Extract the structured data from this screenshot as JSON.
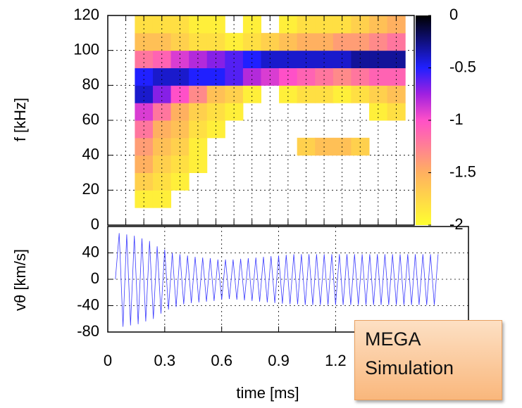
{
  "chart_data": [
    {
      "type": "heatmap",
      "ylabel": "f [kHz]",
      "x": [
        0.2,
        0.3,
        0.4,
        0.5,
        0.6,
        0.7,
        0.8,
        0.9,
        1.0,
        1.1,
        1.2,
        1.3,
        1.4,
        1.5,
        1.6
      ],
      "y": [
        5,
        15,
        25,
        35,
        45,
        55,
        65,
        75,
        85,
        95,
        105,
        115
      ],
      "z": [
        [
          null,
          -1.9,
          -1.7,
          -1.5,
          -1.4,
          -1.2,
          -0.9,
          -0.4,
          -0.5,
          -1.2,
          -1.6,
          -1.8
        ],
        [
          null,
          -1.9,
          -1.8,
          -1.7,
          -1.6,
          -1.5,
          -1.2,
          -0.7,
          -0.4,
          -1.1,
          -1.6,
          -1.8
        ],
        [
          null,
          null,
          -1.9,
          -1.8,
          -1.7,
          -1.6,
          -1.5,
          -1.0,
          -0.4,
          -0.9,
          -1.7,
          -1.8
        ],
        [
          null,
          null,
          null,
          -1.9,
          -1.9,
          -1.8,
          -1.7,
          -1.3,
          -0.5,
          -0.8,
          -1.8,
          -1.9
        ],
        [
          null,
          null,
          null,
          null,
          null,
          -1.9,
          -1.8,
          -1.6,
          -0.5,
          -0.7,
          -1.8,
          -1.9
        ],
        [
          null,
          null,
          null,
          null,
          null,
          null,
          -1.9,
          -1.7,
          -0.6,
          -0.6,
          -1.9,
          null
        ],
        [
          null,
          null,
          null,
          null,
          null,
          null,
          null,
          -1.9,
          -0.8,
          -0.5,
          -1.8,
          -1.9
        ],
        [
          null,
          null,
          null,
          null,
          null,
          null,
          null,
          null,
          -0.9,
          -0.4,
          -1.7,
          null
        ],
        [
          null,
          null,
          null,
          null,
          null,
          null,
          null,
          -1.9,
          -1.0,
          -0.4,
          -1.6,
          -1.9
        ],
        [
          null,
          null,
          null,
          null,
          -1.7,
          null,
          null,
          -1.8,
          -1.1,
          -0.4,
          -1.5,
          -1.8
        ],
        [
          null,
          null,
          null,
          null,
          -1.6,
          null,
          null,
          -1.8,
          -1.2,
          -0.4,
          -1.5,
          -1.8
        ],
        [
          null,
          null,
          null,
          null,
          -1.6,
          null,
          null,
          -1.9,
          -1.3,
          -0.4,
          -1.4,
          -1.8
        ],
        [
          null,
          null,
          null,
          null,
          -1.7,
          null,
          null,
          -1.8,
          -1.2,
          -0.3,
          -1.4,
          -1.7
        ],
        [
          null,
          null,
          null,
          null,
          null,
          null,
          -1.9,
          -1.7,
          -1.1,
          -0.3,
          -1.3,
          -1.6
        ],
        [
          null,
          null,
          null,
          null,
          null,
          null,
          -1.8,
          -1.6,
          -1.1,
          -0.3,
          -1.2,
          -1.5
        ]
      ],
      "xlim": [
        0,
        1.7
      ],
      "xticks": [
        0.1,
        0.2,
        0.3,
        0.4,
        0.5,
        0.6,
        0.7,
        0.8,
        0.9,
        1.0,
        1.1,
        1.2,
        1.3,
        1.4,
        1.5,
        1.6
      ],
      "ylim": [
        0,
        120
      ],
      "yticks": [
        0,
        20,
        40,
        60,
        80,
        100,
        120
      ],
      "zlim": [
        -2,
        0
      ],
      "zticks": [
        0,
        -0.5,
        -1,
        -1.5,
        -2
      ],
      "colorscale": [
        [
          -2,
          "#ffff30"
        ],
        [
          -1.5,
          "#ffb060"
        ],
        [
          -1,
          "#ff50c8"
        ],
        [
          -0.75,
          "#a020e0"
        ],
        [
          -0.5,
          "#2020ff"
        ],
        [
          0,
          "#000000"
        ]
      ],
      "grid": true
    },
    {
      "type": "line",
      "ylabel": "vθ [km/s]",
      "xlabel": "time [ms]",
      "color": "#3a3aff",
      "x": [
        0.04,
        0.06,
        0.08,
        0.1,
        0.12,
        0.14,
        0.16,
        0.18,
        0.2,
        0.22,
        0.24,
        0.26,
        0.28,
        0.3,
        0.32,
        0.34,
        0.36,
        0.38,
        0.4,
        0.42,
        0.44,
        0.46,
        0.48,
        0.5,
        0.52,
        0.54,
        0.56,
        0.58,
        0.6,
        0.62,
        0.64,
        0.66,
        0.68,
        0.7,
        0.72,
        0.74,
        0.76,
        0.78,
        0.8,
        0.82,
        0.84,
        0.86,
        0.88,
        0.9,
        0.92,
        0.94,
        0.96,
        0.98,
        1.0,
        1.02,
        1.04,
        1.06,
        1.08,
        1.1,
        1.12,
        1.14,
        1.16,
        1.18,
        1.2,
        1.22,
        1.24,
        1.26,
        1.28,
        1.3,
        1.32,
        1.34,
        1.36,
        1.38,
        1.4,
        1.42,
        1.44,
        1.46,
        1.48,
        1.5,
        1.52,
        1.54,
        1.56,
        1.58,
        1.6,
        1.62,
        1.64,
        1.66,
        1.68,
        1.7,
        1.72,
        1.74
      ],
      "values": [
        0,
        70,
        -72,
        68,
        -70,
        66,
        -68,
        62,
        -64,
        58,
        -60,
        50,
        -52,
        45,
        -46,
        40,
        -42,
        38,
        -38,
        36,
        -36,
        34,
        -35,
        33,
        -34,
        32,
        -33,
        30,
        -31,
        30,
        -30,
        30,
        -31,
        31,
        -32,
        32,
        -33,
        33,
        -34,
        34,
        -35,
        35,
        -36,
        36,
        -37,
        37,
        -38,
        38,
        -38,
        38,
        -39,
        38,
        -39,
        38,
        -39,
        38,
        -39,
        38,
        -39,
        38,
        -39,
        38,
        -39,
        38,
        -39,
        38,
        -39,
        38,
        -39,
        38,
        -39,
        38,
        -39,
        38,
        -39,
        38,
        -39,
        38,
        -39,
        38,
        -39,
        38,
        -39,
        38,
        -39,
        38
      ],
      "xlim": [
        0,
        1.9
      ],
      "xticks": [
        0,
        0.3,
        0.6,
        0.9,
        1.2
      ],
      "ylim": [
        -80,
        80
      ],
      "yticks": [
        -80,
        -40,
        0,
        40
      ],
      "grid": true,
      "annotation": "MEGA Simulation"
    }
  ]
}
